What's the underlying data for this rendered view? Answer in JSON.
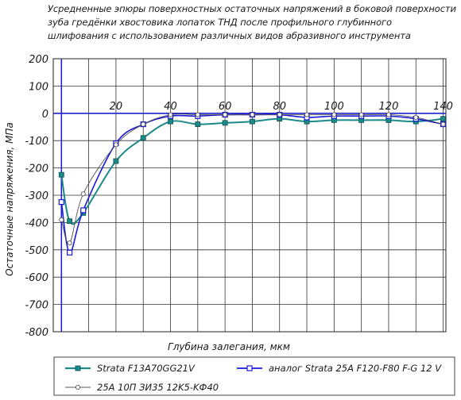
{
  "title_lines": [
    "Усредненные эпюры поверхностных остаточных напряжений в боковой поверхности",
    "зуба гредёнки хвостовика лопаток ТНД после профильного глубинного",
    "шлифования с использованием различных видов абразивного инструмента"
  ],
  "chart_data": {
    "type": "line",
    "title": "Усредненные эпюры поверхностных остаточных напряжений в боковой поверхности зуба гредёнки хвостовика лопаток ТНД после профильного глубинного шлифования с использованием различных видов абразивного инструмента",
    "xlabel": "Глубина залегания, мкм",
    "ylabel": "Остаточные напряжения, МПа",
    "xlim": [
      -3,
      141
    ],
    "ylim": [
      -800,
      200
    ],
    "x_ticks": [
      "20",
      "40",
      "60",
      "80",
      "100",
      "120",
      "140"
    ],
    "y_ticks": [
      "200",
      "100",
      "0",
      "-100",
      "-200",
      "-300",
      "-400",
      "-500",
      "-600",
      "-700",
      "-800"
    ],
    "grid": true,
    "legend_position": "bottom",
    "series": [
      {
        "name": "Strata F13A70GG21V",
        "color": "#1d8a8a",
        "marker": "filled-square",
        "x": [
          0,
          3,
          8,
          20,
          30,
          40,
          50,
          60,
          70,
          80,
          90,
          100,
          110,
          120,
          130,
          140
        ],
        "y": [
          -225,
          -395,
          -365,
          -175,
          -90,
          -30,
          -40,
          -35,
          -30,
          -20,
          -30,
          -25,
          -25,
          -25,
          -30,
          -20
        ]
      },
      {
        "name": "аналог Strata 25A F120-F80 F-G 12 V",
        "color": "#1a1ad8",
        "marker": "hollow-square",
        "x": [
          0,
          3,
          8,
          20,
          30,
          40,
          50,
          60,
          70,
          80,
          90,
          100,
          110,
          120,
          130,
          140
        ],
        "y": [
          -325,
          -510,
          -355,
          -110,
          -40,
          -10,
          -10,
          -5,
          -5,
          -5,
          -15,
          -10,
          -10,
          -10,
          -20,
          -40
        ]
      },
      {
        "name": "25A 10П ЗИ35 12K5-KФ40",
        "color": "#555555",
        "marker": "hollow-circle",
        "x": [
          0,
          3,
          8,
          20,
          30,
          40,
          50,
          60,
          70,
          80,
          90,
          100,
          110,
          120,
          130,
          140
        ],
        "y": [
          -390,
          -475,
          -295,
          -115,
          -40,
          -5,
          -5,
          -5,
          -5,
          -5,
          -5,
          -5,
          -5,
          -5,
          -15,
          -40
        ]
      }
    ]
  }
}
